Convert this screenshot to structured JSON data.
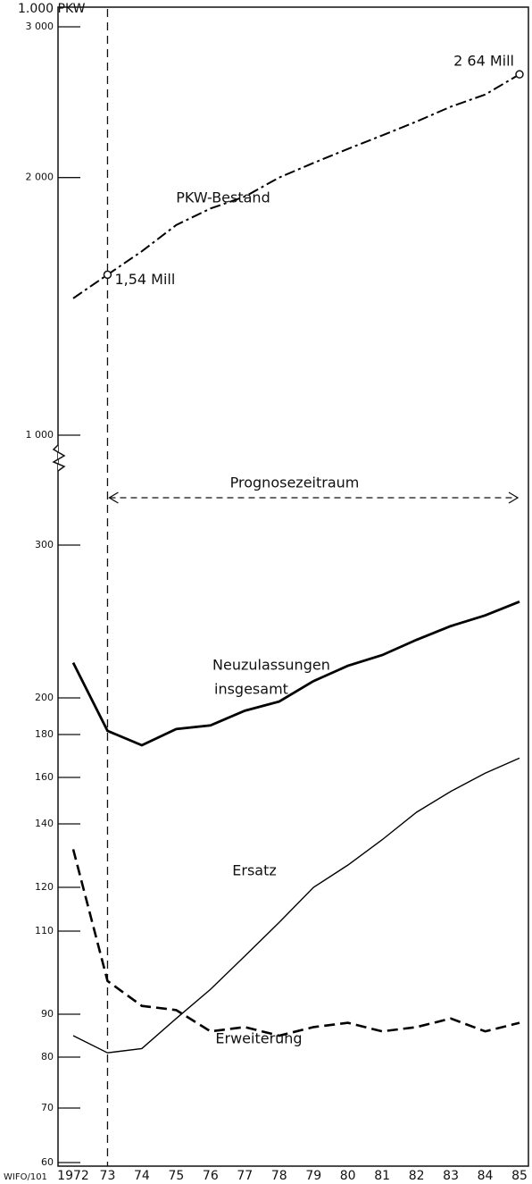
{
  "chart_data": {
    "type": "line",
    "unit_label": "1.000 PKW",
    "footer": "WIFO/101",
    "categories": [
      "1972",
      "73",
      "74",
      "75",
      "76",
      "77",
      "78",
      "79",
      "80",
      "81",
      "82",
      "83",
      "84",
      "85"
    ],
    "y_upper": {
      "ylim": [
        1000,
        3000
      ],
      "log": true,
      "yticks": [
        {
          "value": 3000,
          "label": "3 000"
        },
        {
          "value": 2000,
          "label": "2 000"
        },
        {
          "value": 1000,
          "label": "1 000"
        }
      ]
    },
    "y_lower": {
      "ylim": [
        60,
        300
      ],
      "yticks": [
        300,
        200,
        180,
        160,
        140,
        120,
        110,
        90,
        80,
        70,
        60
      ]
    },
    "series": [
      {
        "name": "PKW-Bestand",
        "axis": "upper",
        "style": "dashdot",
        "color": "#000000",
        "values": [
          1445,
          1540,
          1640,
          1760,
          1840,
          1900,
          2000,
          2080,
          2160,
          2240,
          2325,
          2420,
          2500,
          2640
        ]
      },
      {
        "name": "Neuzulassungen insgesamt",
        "name_lines": [
          "Neuzulassungen",
          "insgesamt"
        ],
        "axis": "lower",
        "style": "thick",
        "color": "#000000",
        "values": [
          223,
          182,
          175,
          183,
          185,
          193,
          198,
          211,
          221,
          228,
          238,
          247,
          254,
          263
        ]
      },
      {
        "name": "Ersatz",
        "axis": "lower",
        "style": "thin",
        "color": "#000000",
        "values": [
          85,
          81,
          82,
          89,
          96,
          104,
          112,
          120,
          127,
          135,
          145,
          154,
          162,
          169
        ]
      },
      {
        "name": "Erweiterung",
        "axis": "lower",
        "style": "dashed",
        "color": "#000000",
        "values": [
          132,
          98,
          92,
          91,
          86,
          87,
          85,
          87,
          88,
          86,
          87,
          89,
          86,
          88
        ]
      }
    ],
    "annotations": [
      {
        "text": "1,54 Mill",
        "series": 0,
        "index": 1
      },
      {
        "text": "2 64 Mill",
        "series": 0,
        "index": 13
      }
    ],
    "forecast_label": "Prognosezeitraum"
  }
}
